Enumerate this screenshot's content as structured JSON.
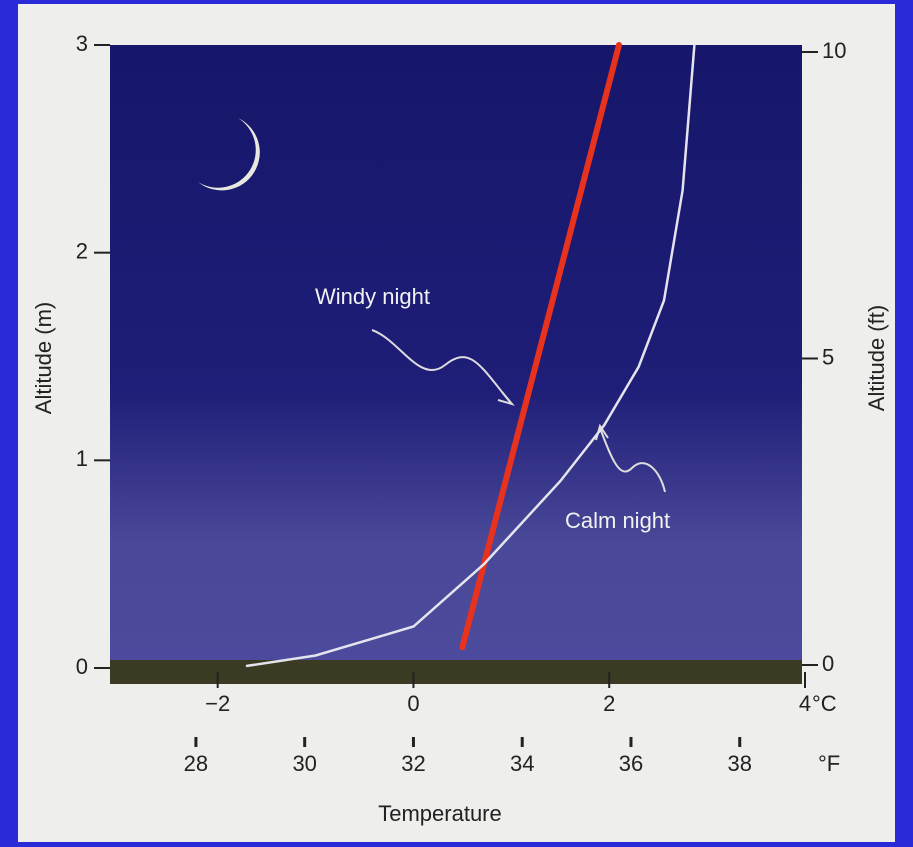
{
  "chart_data": {
    "type": "line",
    "x_label": "Temperature",
    "y_label": "Altitude (m)",
    "y2_label": "Altitude (ft)",
    "x_unit": "°C",
    "x2_unit": "°F",
    "xlim": [
      -3.1,
      4
    ],
    "xticks": [
      {
        "value": -2,
        "label": "−2"
      },
      0,
      2,
      4
    ],
    "x2lim": [
      26.42,
      39.2
    ],
    "x2ticks": [
      28,
      30,
      32,
      34,
      36,
      38
    ],
    "ylim": [
      0,
      3
    ],
    "yticks": [
      0,
      1,
      2,
      3
    ],
    "y2lim": [
      0,
      10
    ],
    "y2ticks": [
      0,
      5,
      10
    ],
    "series": [
      {
        "name": "Windy night",
        "color": "#e8321e",
        "x": [
          0.5,
          2.1
        ],
        "values": [
          0.1,
          3
        ]
      },
      {
        "name": "Calm night",
        "color": "#e4e4ee",
        "x": [
          -1.7,
          -1,
          0,
          0.72,
          1.5,
          1.95,
          2.3,
          2.56,
          2.75,
          2.87
        ],
        "values": [
          0.01,
          0.06,
          0.2,
          0.5,
          0.9,
          1.17,
          1.45,
          1.77,
          2.3,
          3.0
        ]
      }
    ]
  }
}
